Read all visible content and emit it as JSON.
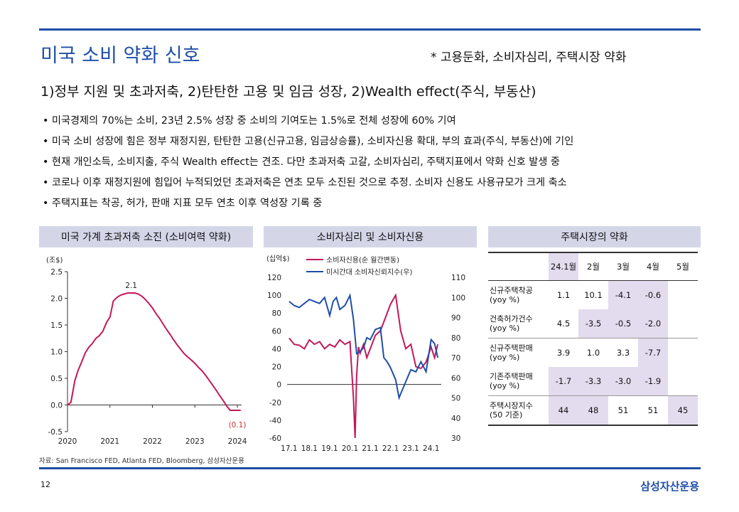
{
  "header": {
    "title": "미국 소비 약화 신호",
    "note": "* 고용둔화, 소비자심리, 주택시장 약화",
    "headline": "1)정부 지원 및 초과저축, 2)탄탄한 고용 및 임금 성장, 2)Wealth effect(주식, 부동산)"
  },
  "bullets": [
    "미국경제의 70%는 소비, 23년 2.5% 성장 중 소비의 기여도는 1.5%로 전체 성장에 60% 기여",
    "미국 소비 성장에 힘은 정부 재정지원, 탄탄한 고용(신규고용, 임금상승률), 소비자신용 확대, 부의 효과(주식, 부동산)에 기인",
    "현재 개인소득, 소비지출, 주식 Wealth effect는 견조. 다만 초과저축 고갈, 소비자심리, 주택지표에서 약화 신호 발생 중",
    "코로나 이후 재정지원에 힘입어 누적되었던 초과저축은 연초 모두 소진된 것으로 추정. 소비자 신용도 사용규모가 크게 축소",
    "주택지표는 착공, 허가, 판매 지표 모두 연초 이후 역성장 기록 중"
  ],
  "panel1": {
    "title": "미국 가계 초과저축 소진 (소비여력 약화)",
    "chart_data": {
      "type": "line",
      "title": "미국 가계 초과저축 소진 (소비여력 약화)",
      "ylabel": "(조$)",
      "ylim": [
        -0.5,
        2.5
      ],
      "yticks": [
        "2.5",
        "2.0",
        "1.5",
        "1.0",
        "0.5",
        "0.0",
        "-0.5"
      ],
      "categories": [
        "2020",
        "2021",
        "2022",
        "2023",
        "2024"
      ],
      "x": [
        2020.0,
        2020.08,
        2020.17,
        2020.25,
        2020.33,
        2020.42,
        2020.5,
        2020.58,
        2020.67,
        2020.75,
        2020.83,
        2020.92,
        2021.0,
        2021.08,
        2021.17,
        2021.25,
        2021.33,
        2021.42,
        2021.5,
        2021.58,
        2021.67,
        2021.75,
        2021.83,
        2021.92,
        2022.0,
        2022.08,
        2022.17,
        2022.25,
        2022.33,
        2022.42,
        2022.5,
        2022.58,
        2022.67,
        2022.75,
        2022.83,
        2022.92,
        2023.0,
        2023.08,
        2023.17,
        2023.25,
        2023.33,
        2023.42,
        2023.5,
        2023.58,
        2023.67,
        2023.75,
        2023.83,
        2023.92,
        2024.0,
        2024.08
      ],
      "values": [
        0.0,
        0.05,
        0.45,
        0.65,
        0.8,
        0.98,
        1.08,
        1.15,
        1.25,
        1.3,
        1.38,
        1.55,
        1.65,
        1.95,
        2.02,
        2.06,
        2.08,
        2.1,
        2.1,
        2.1,
        2.08,
        2.04,
        1.98,
        1.9,
        1.82,
        1.72,
        1.62,
        1.52,
        1.42,
        1.32,
        1.22,
        1.13,
        1.04,
        0.96,
        0.9,
        0.84,
        0.78,
        0.71,
        0.64,
        0.56,
        0.47,
        0.37,
        0.28,
        0.18,
        0.08,
        -0.02,
        -0.1,
        -0.1,
        -0.1,
        -0.1
      ],
      "annotations": [
        {
          "label": "2.1"
        },
        {
          "label": "(0.1)"
        }
      ],
      "color": "#c2185b"
    }
  },
  "panel2": {
    "title": "소비자심리 및 소비자신용",
    "chart_data": {
      "type": "line",
      "title": "소비자심리 및 소비자신용",
      "ylabel_left": "(십억$)",
      "ylim_left": [
        -60,
        120
      ],
      "ylim_right": [
        30,
        110
      ],
      "yticks_left": [
        "120",
        "100",
        "80",
        "60",
        "40",
        "20",
        "0",
        "-20",
        "-40",
        "-60"
      ],
      "yticks_right": [
        "110",
        "100",
        "90",
        "80",
        "70",
        "60",
        "50",
        "40",
        "30"
      ],
      "categories": [
        "17.1",
        "18.1",
        "19.1",
        "20.1",
        "21.1",
        "22.1",
        "23.1",
        "24.1"
      ],
      "series": [
        {
          "name": "소비자신용(순 월간변동)",
          "axis": "left",
          "color": "#c2185b",
          "x": [
            2017.0,
            2017.25,
            2017.5,
            2017.75,
            2018.0,
            2018.25,
            2018.5,
            2018.75,
            2019.0,
            2019.25,
            2019.5,
            2019.75,
            2020.0,
            2020.17,
            2020.25,
            2020.33,
            2020.42,
            2020.5,
            2020.67,
            2020.83,
            2021.0,
            2021.25,
            2021.5,
            2021.75,
            2022.0,
            2022.25,
            2022.5,
            2022.75,
            2023.0,
            2023.25,
            2023.5,
            2023.75,
            2024.0,
            2024.17,
            2024.33
          ],
          "values": [
            52,
            45,
            44,
            40,
            50,
            45,
            48,
            40,
            45,
            42,
            50,
            45,
            48,
            -15,
            -60,
            10,
            42,
            35,
            45,
            30,
            40,
            55,
            60,
            75,
            90,
            100,
            60,
            40,
            45,
            20,
            18,
            25,
            42,
            30,
            45
          ]
        },
        {
          "name": "미시간대 소비자신뢰지수(우)",
          "axis": "right",
          "color": "#1f4ea8",
          "x": [
            2017.0,
            2017.25,
            2017.5,
            2017.75,
            2018.0,
            2018.25,
            2018.5,
            2018.75,
            2019.0,
            2019.17,
            2019.33,
            2019.5,
            2019.75,
            2020.0,
            2020.17,
            2020.33,
            2020.5,
            2020.67,
            2020.83,
            2021.0,
            2021.25,
            2021.5,
            2021.67,
            2021.83,
            2022.0,
            2022.25,
            2022.42,
            2022.5,
            2022.75,
            2023.0,
            2023.25,
            2023.5,
            2023.75,
            2024.0,
            2024.17,
            2024.33
          ],
          "values": [
            98,
            96,
            95,
            97,
            99,
            98,
            97,
            100,
            91,
            98,
            100,
            94,
            96,
            101,
            89,
            72,
            73,
            75,
            80,
            79,
            84,
            85,
            70,
            68,
            65,
            59,
            50,
            52,
            58,
            64,
            63,
            68,
            63,
            79,
            77,
            70
          ]
        }
      ]
    }
  },
  "panel3": {
    "title": "주택시장의 약화",
    "columns": [
      "24.1월",
      "2월",
      "3월",
      "4월",
      "5월"
    ],
    "rows": [
      {
        "label1": "신규주택착공",
        "label2": "(yoy %)",
        "values": [
          "1.1",
          "10.1",
          "-4.1",
          "-0.6",
          ""
        ]
      },
      {
        "label1": "건축허가건수",
        "label2": "(yoy %)",
        "values": [
          "4.5",
          "-3.5",
          "-0.5",
          "-2.0",
          ""
        ]
      },
      {
        "label1": "신규주택판매",
        "label2": "(yoy %)",
        "values": [
          "3.9",
          "1.0",
          "3.3",
          "-7.7",
          ""
        ]
      },
      {
        "label1": "기존주택판매",
        "label2": "(yoy %)",
        "values": [
          "-1.7",
          "-3.3",
          "-3.0",
          "-1.9",
          ""
        ]
      },
      {
        "label1": "주택시장지수",
        "label2": "(50 기준)",
        "values": [
          "44",
          "48",
          "51",
          "51",
          "45"
        ]
      }
    ]
  },
  "footer": {
    "source": "자료: San Francisco FED, Atlanta FED, Bloomberg, 삼성자산운용",
    "page": "12",
    "brand": "삼성자산운용"
  }
}
